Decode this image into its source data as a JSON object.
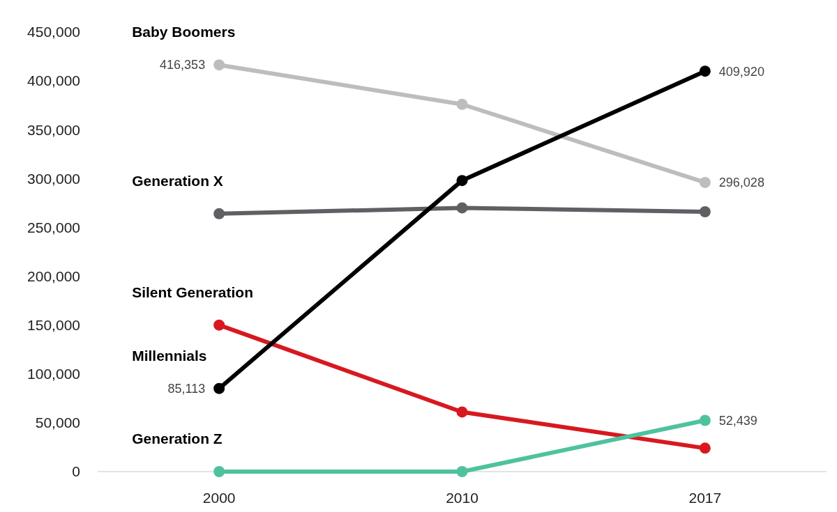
{
  "chart_data": {
    "type": "line",
    "categories": [
      "2000",
      "2010",
      "2017"
    ],
    "series": [
      {
        "name": "Baby Boomers",
        "color": "#bdbdbd",
        "values": [
          416353,
          376000,
          296028
        ],
        "value_labels": [
          "416,353",
          null,
          "296,028"
        ]
      },
      {
        "name": "Generation X",
        "color": "#5f6064",
        "values": [
          264000,
          270000,
          266000
        ],
        "value_labels": [
          null,
          null,
          null
        ]
      },
      {
        "name": "Silent Generation",
        "color": "#d7191f",
        "values": [
          150000,
          61000,
          24000
        ],
        "value_labels": [
          null,
          null,
          null
        ]
      },
      {
        "name": "Millennials",
        "color": "#000000",
        "values": [
          85113,
          298000,
          409920
        ],
        "value_labels": [
          "85,113",
          null,
          "409,920"
        ]
      },
      {
        "name": "Generation Z",
        "color": "#4ec29e",
        "values": [
          0,
          0,
          52439
        ],
        "value_labels": [
          null,
          null,
          "52,439"
        ]
      }
    ],
    "ylim": [
      0,
      450000
    ],
    "yticks": [
      {
        "value": 0,
        "label": "0"
      },
      {
        "value": 50000,
        "label": "50,000"
      },
      {
        "value": 100000,
        "label": "100,000"
      },
      {
        "value": 150000,
        "label": "150,000"
      },
      {
        "value": 200000,
        "label": "200,000"
      },
      {
        "value": 250000,
        "label": "250,000"
      },
      {
        "value": 300000,
        "label": "300,000"
      },
      {
        "value": 350000,
        "label": "350,000"
      },
      {
        "value": 400000,
        "label": "400,000"
      },
      {
        "value": 450000,
        "label": "450,000"
      }
    ],
    "grid": false,
    "marker": "circle",
    "line_style": "solid"
  }
}
